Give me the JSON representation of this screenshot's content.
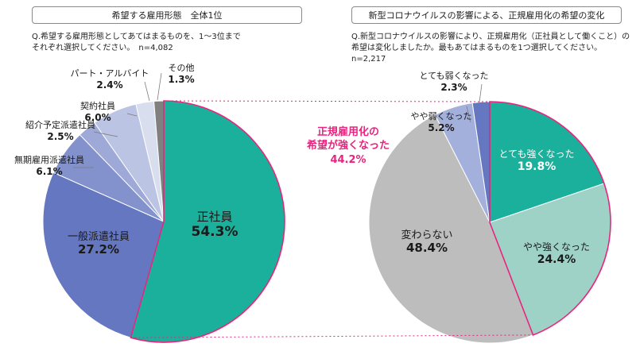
{
  "left_panel": {
    "title": "希望する雇用形態　全体1位",
    "question_line1": "Q.希望する雇用形態としてあてはまるものを、1～3位まで",
    "question_line2": "それぞれ選択してください。　n=4,082"
  },
  "right_panel": {
    "title": "新型コロナウイルスの影響による、正規雇用化の希望の変化",
    "question_line1": "Q.新型コロナウイルスの影響により、正規雇用化（正社員として働くこと）の",
    "question_line2": "希望は変化しましたか。最もあてはまるものを1つ選択してください。　n=2,217"
  },
  "callout": {
    "line1": "正規雇用化の",
    "line2": "希望が強くなった",
    "value": "44.2%",
    "color": "#e8257e"
  },
  "chart_data": [
    {
      "type": "pie",
      "title": "希望する雇用形態　全体1位",
      "n": "n=4,082",
      "start": "12 o'clock",
      "direction": "clockwise",
      "slices": [
        {
          "label": "正社員",
          "value": 54.3,
          "display": "54.3%",
          "color": "#1ab09b",
          "text_color": "#1a1a1a"
        },
        {
          "label": "一般派遣社員",
          "value": 27.2,
          "display": "27.2%",
          "color": "#6577c0",
          "text_color": "#1a1a1a"
        },
        {
          "label": "無期雇用派遣社員",
          "value": 6.1,
          "display": "6.1%",
          "color": "#8392cc",
          "text_color": "#1a1a1a"
        },
        {
          "label": "紹介予定派遣社員",
          "value": 2.5,
          "display": "2.5%",
          "color": "#9ea9d7",
          "text_color": "#1a1a1a"
        },
        {
          "label": "契約社員",
          "value": 6.0,
          "display": "6.0%",
          "color": "#bcc4e4",
          "text_color": "#1a1a1a"
        },
        {
          "label": "パート・アルバイト",
          "value": 2.4,
          "display": "2.4%",
          "color": "#d9deef",
          "text_color": "#1a1a1a"
        },
        {
          "label": "その他",
          "value": 1.3,
          "display": "1.3%",
          "color": "#808080",
          "text_color": "#1a1a1a"
        }
      ]
    },
    {
      "type": "pie",
      "title": "新型コロナウイルスの影響による、正規雇用化の希望の変化",
      "n": "n=2,217",
      "start": "12 o'clock",
      "direction": "clockwise",
      "slices": [
        {
          "label": "とても強くなった",
          "value": 19.8,
          "display": "19.8%",
          "color": "#1ab09b",
          "text_color": "#ffffff"
        },
        {
          "label": "やや強くなった",
          "value": 24.4,
          "display": "24.4%",
          "color": "#9fd2c7",
          "text_color": "#1a1a1a"
        },
        {
          "label": "変わらない",
          "value": 48.4,
          "display": "48.4%",
          "color": "#bdbdbd",
          "text_color": "#1a1a1a"
        },
        {
          "label": "やや弱くなった",
          "value": 5.2,
          "display": "5.2%",
          "color": "#a4b0dc",
          "text_color": "#1a1a1a"
        },
        {
          "label": "とても弱くなった",
          "value": 2.3,
          "display": "2.3%",
          "color": "#6577c0",
          "text_color": "#1a1a1a"
        }
      ]
    }
  ]
}
